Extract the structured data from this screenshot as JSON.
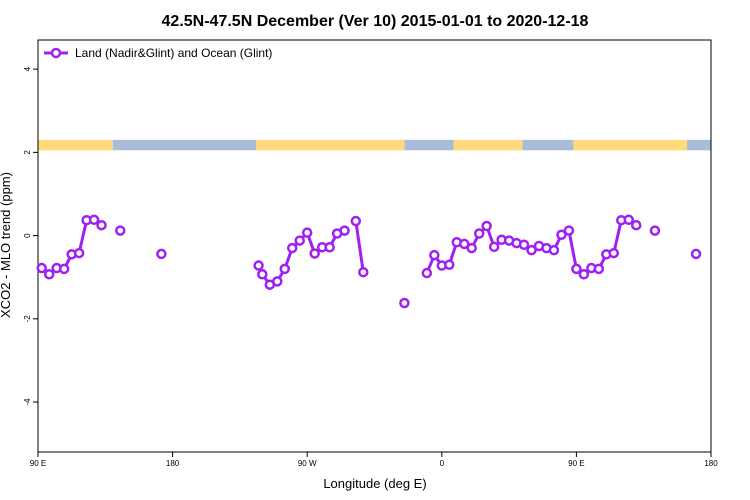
{
  "chart_data": {
    "type": "line",
    "title": "42.5N-47.5N December (Ver 10)   2015-01-01 to 2020-12-18",
    "xlabel": "Longitude (deg E)",
    "ylabel": "XCO2 - MLO trend (ppm)",
    "xlim": [
      90,
      540
    ],
    "ylim": [
      -5.2,
      4.7
    ],
    "x_ticks": [
      {
        "value": 90,
        "label": "90 E"
      },
      {
        "value": 180,
        "label": "180"
      },
      {
        "value": 270,
        "label": "90 W"
      },
      {
        "value": 360,
        "label": "0"
      },
      {
        "value": 450,
        "label": "90 E"
      },
      {
        "value": 540,
        "label": "180"
      }
    ],
    "y_ticks": [
      {
        "value": 4,
        "label": "4"
      },
      {
        "value": 2,
        "label": "2"
      },
      {
        "value": 0,
        "label": "0"
      },
      {
        "value": -2,
        "label": "-2"
      },
      {
        "value": -4,
        "label": "-4"
      }
    ],
    "legend": {
      "position": "top-left",
      "label": "Land (Nadir&Glint) and Ocean (Glint)"
    },
    "series_color": "#a020f0",
    "land_color": "#ffd97a",
    "ocean_color": "#a9bcd8",
    "surface_band": {
      "y_range": [
        2.05,
        2.3
      ],
      "segments": [
        {
          "x": [
            90,
            140
          ],
          "type": "land"
        },
        {
          "x": [
            140,
            236
          ],
          "type": "ocean"
        },
        {
          "x": [
            236,
            335
          ],
          "type": "land"
        },
        {
          "x": [
            335,
            368
          ],
          "type": "ocean"
        },
        {
          "x": [
            368,
            414
          ],
          "type": "land"
        },
        {
          "x": [
            414,
            448
          ],
          "type": "ocean"
        },
        {
          "x": [
            448,
            524
          ],
          "type": "land"
        },
        {
          "x": [
            524,
            540
          ],
          "type": "ocean"
        }
      ]
    },
    "series": [
      {
        "name": "Land (Nadir&Glint) and Ocean (Glint)",
        "segments": [
          [
            [
              92.5,
              -0.78
            ],
            [
              97.5,
              -0.93
            ],
            [
              102.5,
              -0.78
            ],
            [
              107.5,
              -0.8
            ],
            [
              112.5,
              -0.45
            ],
            [
              117.5,
              -0.42
            ],
            [
              122.5,
              0.37
            ],
            [
              127.5,
              0.38
            ],
            [
              132.5,
              0.25
            ]
          ],
          [
            [
              145,
              0.12
            ]
          ],
          [
            [
              172.5,
              -0.44
            ]
          ],
          [
            [
              237.5,
              -0.72
            ],
            [
              240,
              -0.93
            ],
            [
              245,
              -1.18
            ],
            [
              250,
              -1.1
            ],
            [
              255,
              -0.8
            ],
            [
              260,
              -0.3
            ],
            [
              265,
              -0.12
            ],
            [
              270,
              0.07
            ],
            [
              275,
              -0.43
            ],
            [
              280,
              -0.28
            ],
            [
              285,
              -0.28
            ],
            [
              290,
              0.05
            ],
            [
              295,
              0.12
            ]
          ],
          [
            [
              302.5,
              0.35
            ],
            [
              307.5,
              -0.88
            ]
          ],
          [
            [
              335,
              -1.62
            ]
          ],
          [
            [
              350,
              -0.9
            ],
            [
              355,
              -0.47
            ],
            [
              360,
              -0.72
            ],
            [
              365,
              -0.7
            ],
            [
              370,
              -0.16
            ],
            [
              375,
              -0.2
            ],
            [
              380,
              -0.3
            ],
            [
              385,
              0.05
            ],
            [
              390,
              0.23
            ],
            [
              395,
              -0.27
            ],
            [
              400,
              -0.1
            ],
            [
              405,
              -0.12
            ],
            [
              410,
              -0.18
            ],
            [
              415,
              -0.22
            ],
            [
              420,
              -0.35
            ],
            [
              425,
              -0.25
            ],
            [
              430,
              -0.3
            ],
            [
              435,
              -0.35
            ],
            [
              440,
              0.02
            ],
            [
              445,
              0.12
            ],
            [
              450,
              -0.8
            ],
            [
              455,
              -0.93
            ],
            [
              460,
              -0.78
            ],
            [
              465,
              -0.8
            ],
            [
              470,
              -0.45
            ],
            [
              475,
              -0.42
            ],
            [
              480,
              0.37
            ],
            [
              485,
              0.38
            ],
            [
              490,
              0.25
            ]
          ],
          [
            [
              502.5,
              0.12
            ]
          ],
          [
            [
              530,
              -0.44
            ]
          ]
        ]
      }
    ]
  }
}
